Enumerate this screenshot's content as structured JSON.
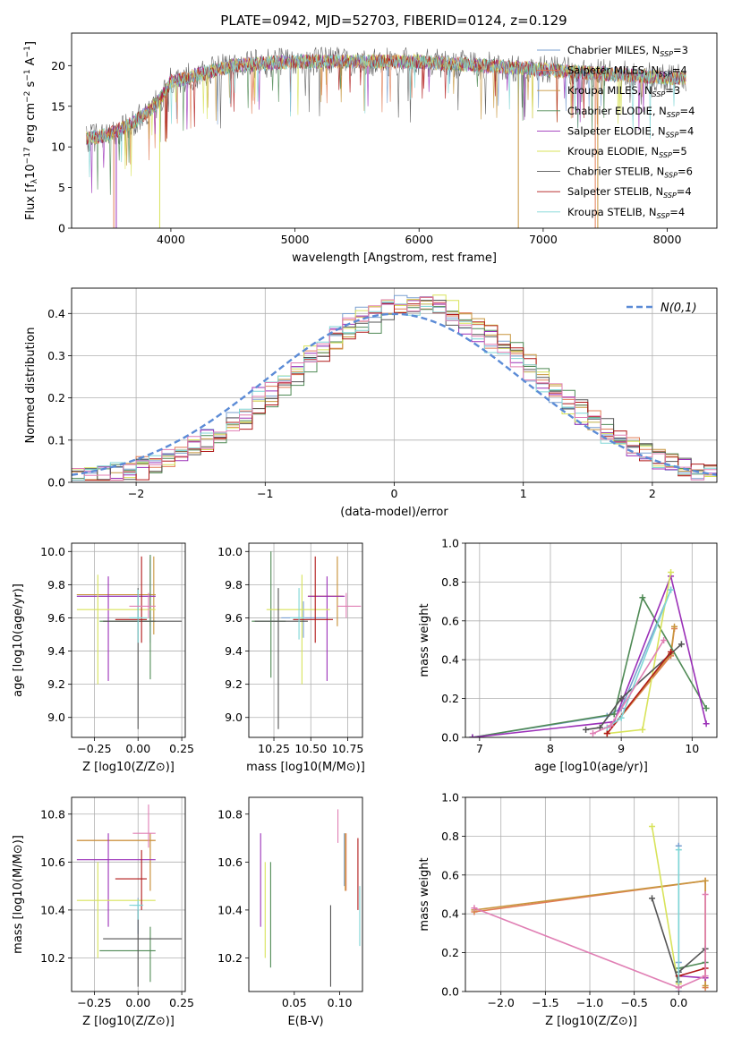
{
  "title": "PLATE=0942, MJD=52703, FIBERID=0124, z=0.129",
  "colors": {
    "Chabrier MILES": "#7a9fd0",
    "Salpeter MILES": "#e07b54",
    "Kroupa MILES": "#c8963e",
    "Chabrier ELODIE": "#4f8a55",
    "Salpeter ELODIE": "#9b30b8",
    "Kroupa ELODIE": "#d8e35a",
    "Chabrier STELIB": "#555555",
    "Salpeter STELIB": "#b01818",
    "Kroupa STELIB": "#7fd6d6",
    "Pink": "#e07fb4",
    "Gaussian": "#5b8bd6"
  },
  "chart_data": [
    {
      "id": "spectrum",
      "type": "line",
      "xlabel": "wavelength [Angstrom, rest frame]",
      "ylabel": "Flux [f",
      "ylabel_parts": [
        "Flux [f",
        "λ",
        "10",
        "−17",
        " erg cm",
        "−2",
        " s",
        "−1",
        " A",
        "−1",
        "]"
      ],
      "xlim": [
        3200,
        8400
      ],
      "ylim": [
        0,
        24
      ],
      "xticks": [
        4000,
        5000,
        6000,
        7000,
        8000
      ],
      "yticks": [
        0,
        5,
        10,
        15,
        20
      ],
      "grid": false,
      "legend_placement": "top-right",
      "x_range_data": [
        3320,
        8150
      ],
      "series": [
        {
          "name": "Chabrier MILES",
          "sub": "SSP",
          "n": "3"
        },
        {
          "name": "Salpeter MILES",
          "sub": "SSP",
          "n": "4"
        },
        {
          "name": "Kroupa MILES",
          "sub": "SSP",
          "n": "3"
        },
        {
          "name": "Chabrier ELODIE",
          "sub": "SSP",
          "n": "4"
        },
        {
          "name": "Salpeter ELODIE",
          "sub": "SSP",
          "n": "4"
        },
        {
          "name": "Kroupa ELODIE",
          "sub": "SSP",
          "n": "5"
        },
        {
          "name": "Chabrier STELIB",
          "sub": "SSP",
          "n": "6"
        },
        {
          "name": "Salpeter STELIB",
          "sub": "SSP",
          "n": "4"
        },
        {
          "name": "Kroupa STELIB",
          "sub": "SSP",
          "n": "4"
        }
      ],
      "envelope": [
        [
          3320,
          11
        ],
        [
          3500,
          11.5
        ],
        [
          3700,
          13
        ],
        [
          3900,
          15.5
        ],
        [
          4000,
          18
        ],
        [
          4500,
          20
        ],
        [
          5000,
          20.5
        ],
        [
          5500,
          20.5
        ],
        [
          6000,
          20.5
        ],
        [
          6500,
          20
        ],
        [
          7000,
          19.5
        ],
        [
          7500,
          19
        ],
        [
          8000,
          18.5
        ],
        [
          8150,
          18.5
        ]
      ]
    },
    {
      "id": "residual-hist",
      "type": "histogram",
      "xlabel": "(data-model)/error",
      "ylabel": "Normed distribution",
      "xlim": [
        -2.5,
        2.5
      ],
      "ylim": [
        0,
        0.46
      ],
      "xticks": [
        -2,
        -1,
        0,
        1,
        2
      ],
      "yticks": [
        0.0,
        0.1,
        0.2,
        0.3,
        0.4
      ],
      "grid": true,
      "legend_placement": "top-right",
      "gaussian_label": "N(0,1)",
      "bin_width": 0.1
    },
    {
      "id": "age-vs-Z",
      "type": "errorbar",
      "xlabel": "Z [log10(Z/Z⊙)]",
      "ylabel": "age  [log10(age/yr)]",
      "xlim": [
        -0.38,
        0.27
      ],
      "ylim": [
        8.88,
        10.05
      ],
      "xticks": [
        -0.25,
        0.0,
        0.25
      ],
      "yticks": [
        9.0,
        9.2,
        9.4,
        9.6,
        9.8,
        10.0
      ],
      "grid": true,
      "points": [
        {
          "c": "Chabrier MILES",
          "x": 0.07,
          "y": 9.73,
          "x0": -0.35,
          "x1": 0.1,
          "y0": 9.45,
          "y1": 9.95
        },
        {
          "c": "Salpeter MILES",
          "x": 0.07,
          "y": 9.74,
          "x0": -0.35,
          "x1": 0.1,
          "y0": 9.55,
          "y1": 9.97
        },
        {
          "c": "Kroupa MILES",
          "x": 0.09,
          "y": 9.74,
          "x0": -0.35,
          "x1": 0.1,
          "y0": 9.5,
          "y1": 9.97
        },
        {
          "c": "Chabrier ELODIE",
          "x": 0.07,
          "y": 9.58,
          "x0": -0.22,
          "x1": 0.1,
          "y0": 9.23,
          "y1": 9.98
        },
        {
          "c": "Salpeter ELODIE",
          "x": -0.17,
          "y": 9.73,
          "x0": -0.35,
          "x1": 0.1,
          "y0": 9.22,
          "y1": 9.85
        },
        {
          "c": "Kroupa ELODIE",
          "x": -0.23,
          "y": 9.65,
          "x0": -0.35,
          "x1": 0.1,
          "y0": 9.2,
          "y1": 9.86
        },
        {
          "c": "Chabrier STELIB",
          "x": 0.0,
          "y": 9.58,
          "x0": -0.2,
          "x1": 0.25,
          "y0": 8.93,
          "y1": 9.78
        },
        {
          "c": "Salpeter STELIB",
          "x": 0.02,
          "y": 9.59,
          "x0": -0.13,
          "x1": 0.05,
          "y0": 9.45,
          "y1": 9.97
        },
        {
          "c": "Kroupa STELIB",
          "x": 0.0,
          "y": 9.6,
          "x0": -0.05,
          "x1": 0.05,
          "y0": 9.45,
          "y1": 9.77
        },
        {
          "c": "Pink",
          "x": 0.06,
          "y": 9.67,
          "x0": -0.05,
          "x1": 0.1,
          "y0": 9.6,
          "y1": 9.75
        }
      ]
    },
    {
      "id": "age-vs-mass",
      "type": "errorbar",
      "xlabel": "mass [log10(M/M⊙)]",
      "ylabel": "",
      "xlim": [
        10.08,
        10.85
      ],
      "ylim": [
        8.88,
        10.05
      ],
      "xticks": [
        10.25,
        10.5,
        10.75
      ],
      "yticks": [
        9.0,
        9.2,
        9.4,
        9.6,
        9.8,
        10.0
      ],
      "grid": true,
      "points": [
        {
          "c": "Chabrier MILES",
          "x": 10.45,
          "y": 9.6,
          "x0": 10.3,
          "x1": 10.6,
          "y0": 9.48,
          "y1": 9.7
        },
        {
          "c": "Salpeter MILES",
          "x": 10.68,
          "y": 9.73,
          "x0": 10.48,
          "x1": 10.72,
          "y0": 9.55,
          "y1": 9.97
        },
        {
          "c": "Kroupa MILES",
          "x": 10.68,
          "y": 9.73,
          "x0": 10.48,
          "x1": 10.72,
          "y0": 9.55,
          "y1": 9.97
        },
        {
          "c": "Chabrier ELODIE",
          "x": 10.23,
          "y": 9.58,
          "x0": 10.1,
          "x1": 10.33,
          "y0": 9.24,
          "y1": 10.0
        },
        {
          "c": "Salpeter ELODIE",
          "x": 10.61,
          "y": 9.73,
          "x0": 10.48,
          "x1": 10.73,
          "y0": 9.22,
          "y1": 9.85
        },
        {
          "c": "Kroupa ELODIE",
          "x": 10.44,
          "y": 9.65,
          "x0": 10.2,
          "x1": 10.63,
          "y0": 9.2,
          "y1": 9.86
        },
        {
          "c": "Chabrier STELIB",
          "x": 10.28,
          "y": 9.58,
          "x0": 10.12,
          "x1": 10.48,
          "y0": 8.93,
          "y1": 9.78
        },
        {
          "c": "Salpeter STELIB",
          "x": 10.53,
          "y": 9.59,
          "x0": 10.38,
          "x1": 10.65,
          "y0": 9.45,
          "y1": 9.97
        },
        {
          "c": "Kroupa STELIB",
          "x": 10.42,
          "y": 9.6,
          "x0": 10.36,
          "x1": 10.46,
          "y0": 9.47,
          "y1": 9.78
        },
        {
          "c": "Pink",
          "x": 10.74,
          "y": 9.67,
          "x0": 10.68,
          "x1": 10.84,
          "y0": 9.6,
          "y1": 9.75
        }
      ]
    },
    {
      "id": "mass-weight-vs-age",
      "type": "line",
      "xlabel": "age  [log10(age/yr)]",
      "ylabel": "mass weight",
      "xlim": [
        6.8,
        10.35
      ],
      "ylim": [
        0,
        1
      ],
      "xticks": [
        7,
        8,
        9,
        10
      ],
      "yticks": [
        0.0,
        0.2,
        0.4,
        0.6,
        0.8,
        1.0
      ],
      "grid": true,
      "series": [
        {
          "c": "Chabrier MILES",
          "x": [
            6.9,
            8.8,
            9.0,
            9.7
          ],
          "y": [
            0.0,
            0.11,
            0.15,
            0.76
          ]
        },
        {
          "c": "Salpeter MILES",
          "x": [
            8.8,
            9.7,
            9.75
          ],
          "y": [
            0.02,
            0.42,
            0.56
          ]
        },
        {
          "c": "Kroupa MILES",
          "x": [
            8.8,
            9.7,
            9.75
          ],
          "y": [
            0.02,
            0.43,
            0.57
          ]
        },
        {
          "c": "Chabrier ELODIE",
          "x": [
            6.9,
            8.9,
            9.3,
            10.2
          ],
          "y": [
            0.0,
            0.12,
            0.72,
            0.15
          ]
        },
        {
          "c": "Salpeter ELODIE",
          "x": [
            6.9,
            8.9,
            9.7,
            10.2
          ],
          "y": [
            0.0,
            0.08,
            0.83,
            0.07
          ]
        },
        {
          "c": "Kroupa ELODIE",
          "x": [
            8.8,
            9.3,
            9.7
          ],
          "y": [
            0.02,
            0.04,
            0.85
          ]
        },
        {
          "c": "Chabrier STELIB",
          "x": [
            8.5,
            8.7,
            9.0,
            9.85
          ],
          "y": [
            0.04,
            0.05,
            0.2,
            0.48
          ]
        },
        {
          "c": "Salpeter STELIB",
          "x": [
            8.8,
            9.7
          ],
          "y": [
            0.02,
            0.44
          ]
        },
        {
          "c": "Kroupa STELIB",
          "x": [
            8.8,
            9.0,
            9.7
          ],
          "y": [
            0.05,
            0.1,
            0.76
          ]
        },
        {
          "c": "Pink",
          "x": [
            8.6,
            8.85,
            9.6
          ],
          "y": [
            0.02,
            0.06,
            0.5
          ]
        }
      ]
    },
    {
      "id": "mass-vs-Z",
      "type": "errorbar",
      "xlabel": "Z [log10(Z/Z⊙)]",
      "ylabel": "mass [log10(M/M⊙)]",
      "xlim": [
        -0.38,
        0.27
      ],
      "ylim": [
        10.06,
        10.87
      ],
      "xticks": [
        -0.25,
        0.0,
        0.25
      ],
      "yticks": [
        10.2,
        10.4,
        10.6,
        10.8
      ],
      "grid": true,
      "points": [
        {
          "c": "Chabrier MILES",
          "x": 0.0,
          "y": 10.42,
          "x0": -0.03,
          "x1": 0.02,
          "y0": 10.3,
          "y1": 10.45
        },
        {
          "c": "Salpeter MILES",
          "x": 0.07,
          "y": 10.69,
          "x0": -0.35,
          "x1": 0.1,
          "y0": 10.48,
          "y1": 10.72
        },
        {
          "c": "Kroupa MILES",
          "x": 0.07,
          "y": 10.69,
          "x0": -0.35,
          "x1": 0.1,
          "y0": 10.48,
          "y1": 10.72
        },
        {
          "c": "Chabrier ELODIE",
          "x": 0.07,
          "y": 10.23,
          "x0": -0.22,
          "x1": 0.1,
          "y0": 10.1,
          "y1": 10.33
        },
        {
          "c": "Salpeter ELODIE",
          "x": -0.17,
          "y": 10.61,
          "x0": -0.35,
          "x1": 0.1,
          "y0": 10.33,
          "y1": 10.72
        },
        {
          "c": "Kroupa ELODIE",
          "x": -0.23,
          "y": 10.44,
          "x0": -0.35,
          "x1": 0.1,
          "y0": 10.2,
          "y1": 10.6
        },
        {
          "c": "Chabrier STELIB",
          "x": 0.0,
          "y": 10.28,
          "x0": -0.2,
          "x1": 0.25,
          "y0": 10.08,
          "y1": 10.4
        },
        {
          "c": "Salpeter STELIB",
          "x": 0.02,
          "y": 10.53,
          "x0": -0.13,
          "x1": 0.05,
          "y0": 10.4,
          "y1": 10.65
        },
        {
          "c": "Kroupa STELIB",
          "x": 0.0,
          "y": 10.42,
          "x0": -0.05,
          "x1": 0.03,
          "y0": 10.36,
          "y1": 10.44
        },
        {
          "c": "Pink",
          "x": 0.06,
          "y": 10.72,
          "x0": -0.03,
          "x1": 0.1,
          "y0": 10.66,
          "y1": 10.84
        }
      ]
    },
    {
      "id": "mass-vs-EBV",
      "type": "errorbar",
      "xlabel": "E(B-V)",
      "ylabel": "",
      "xlim": [
        0.0,
        0.125
      ],
      "ylim": [
        10.06,
        10.87
      ],
      "xticks": [
        0.05,
        0.1
      ],
      "yticks": [
        10.2,
        10.4,
        10.6,
        10.8
      ],
      "grid": false,
      "points": [
        {
          "c": "Chabrier MILES",
          "x": 0.105,
          "y": 10.6,
          "x0": 0.105,
          "x1": 0.105,
          "y0": 10.5,
          "y1": 10.72
        },
        {
          "c": "Salpeter MILES",
          "x": 0.107,
          "y": 10.6,
          "x0": 0.107,
          "x1": 0.107,
          "y0": 10.48,
          "y1": 10.72
        },
        {
          "c": "Kroupa MILES",
          "x": 0.106,
          "y": 10.6,
          "x0": 0.106,
          "x1": 0.106,
          "y0": 10.48,
          "y1": 10.72
        },
        {
          "c": "Chabrier ELODIE",
          "x": 0.024,
          "y": 10.4,
          "x0": 0.024,
          "x1": 0.024,
          "y0": 10.16,
          "y1": 10.6
        },
        {
          "c": "Salpeter ELODIE",
          "x": 0.013,
          "y": 10.5,
          "x0": 0.013,
          "x1": 0.013,
          "y0": 10.33,
          "y1": 10.72
        },
        {
          "c": "Kroupa ELODIE",
          "x": 0.018,
          "y": 10.45,
          "x0": 0.018,
          "x1": 0.018,
          "y0": 10.2,
          "y1": 10.6
        },
        {
          "c": "Chabrier STELIB",
          "x": 0.09,
          "y": 10.25,
          "x0": 0.09,
          "x1": 0.09,
          "y0": 10.08,
          "y1": 10.42
        },
        {
          "c": "Salpeter STELIB",
          "x": 0.12,
          "y": 10.55,
          "x0": 0.12,
          "x1": 0.12,
          "y0": 10.4,
          "y1": 10.7
        },
        {
          "c": "Kroupa STELIB",
          "x": 0.122,
          "y": 10.38,
          "x0": 0.122,
          "x1": 0.122,
          "y0": 10.25,
          "y1": 10.5
        },
        {
          "c": "Pink",
          "x": 0.098,
          "y": 10.74,
          "x0": 0.098,
          "x1": 0.098,
          "y0": 10.68,
          "y1": 10.82
        }
      ]
    },
    {
      "id": "mass-weight-vs-Z",
      "type": "line",
      "xlabel": "Z [log10(Z/Z⊙)]",
      "ylabel": "mass weight",
      "xlim": [
        -2.4,
        0.43
      ],
      "ylim": [
        0,
        1
      ],
      "xticks": [
        -2.0,
        -1.5,
        -1.0,
        -0.5,
        0.0
      ],
      "yticks": [
        0.0,
        0.2,
        0.4,
        0.6,
        0.8,
        1.0
      ],
      "grid": true,
      "series": [
        {
          "c": "Chabrier MILES",
          "x": [
            0.0,
            0.0,
            0.0
          ],
          "y": [
            0.0,
            0.15,
            0.75
          ]
        },
        {
          "c": "Salpeter MILES",
          "x": [
            -2.3,
            0.3,
            0.3
          ],
          "y": [
            0.41,
            0.57,
            0.02
          ]
        },
        {
          "c": "Kroupa MILES",
          "x": [
            -2.3,
            0.3,
            0.3
          ],
          "y": [
            0.42,
            0.57,
            0.03
          ]
        },
        {
          "c": "Chabrier ELODIE",
          "x": [
            0.0,
            0.3
          ],
          "y": [
            0.12,
            0.15
          ]
        },
        {
          "c": "Salpeter ELODIE",
          "x": [
            0.0,
            0.3
          ],
          "y": [
            0.08,
            0.07
          ]
        },
        {
          "c": "Kroupa ELODIE",
          "x": [
            -0.3,
            0.0,
            0.0
          ],
          "y": [
            0.85,
            0.02,
            0.04
          ]
        },
        {
          "c": "Chabrier STELIB",
          "x": [
            -0.3,
            0.0,
            0.0,
            0.3
          ],
          "y": [
            0.48,
            0.05,
            0.1,
            0.22
          ]
        },
        {
          "c": "Salpeter STELIB",
          "x": [
            0.0,
            0.3
          ],
          "y": [
            0.08,
            0.12
          ]
        },
        {
          "c": "Kroupa STELIB",
          "x": [
            0.0,
            0.0
          ],
          "y": [
            0.73,
            0.02
          ]
        },
        {
          "c": "Pink",
          "x": [
            -2.3,
            0.0,
            0.3,
            0.3
          ],
          "y": [
            0.43,
            0.02,
            0.08,
            0.5
          ]
        }
      ]
    }
  ]
}
